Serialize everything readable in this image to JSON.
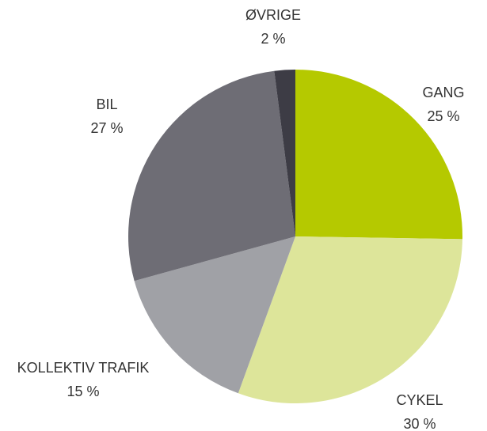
{
  "chart_data": {
    "type": "pie",
    "categories": [
      "GANG",
      "CYKEL",
      "KOLLEKTIV TRAFIK",
      "BIL",
      "ØVRIGE"
    ],
    "values": [
      25,
      30,
      15,
      27,
      2
    ],
    "value_labels": [
      "25 %",
      "30 %",
      "15 %",
      "27 %",
      "2 %"
    ],
    "colors": [
      "#b5c900",
      "#dde59a",
      "#a0a1a6",
      "#6e6d75",
      "#3d3c45"
    ]
  }
}
